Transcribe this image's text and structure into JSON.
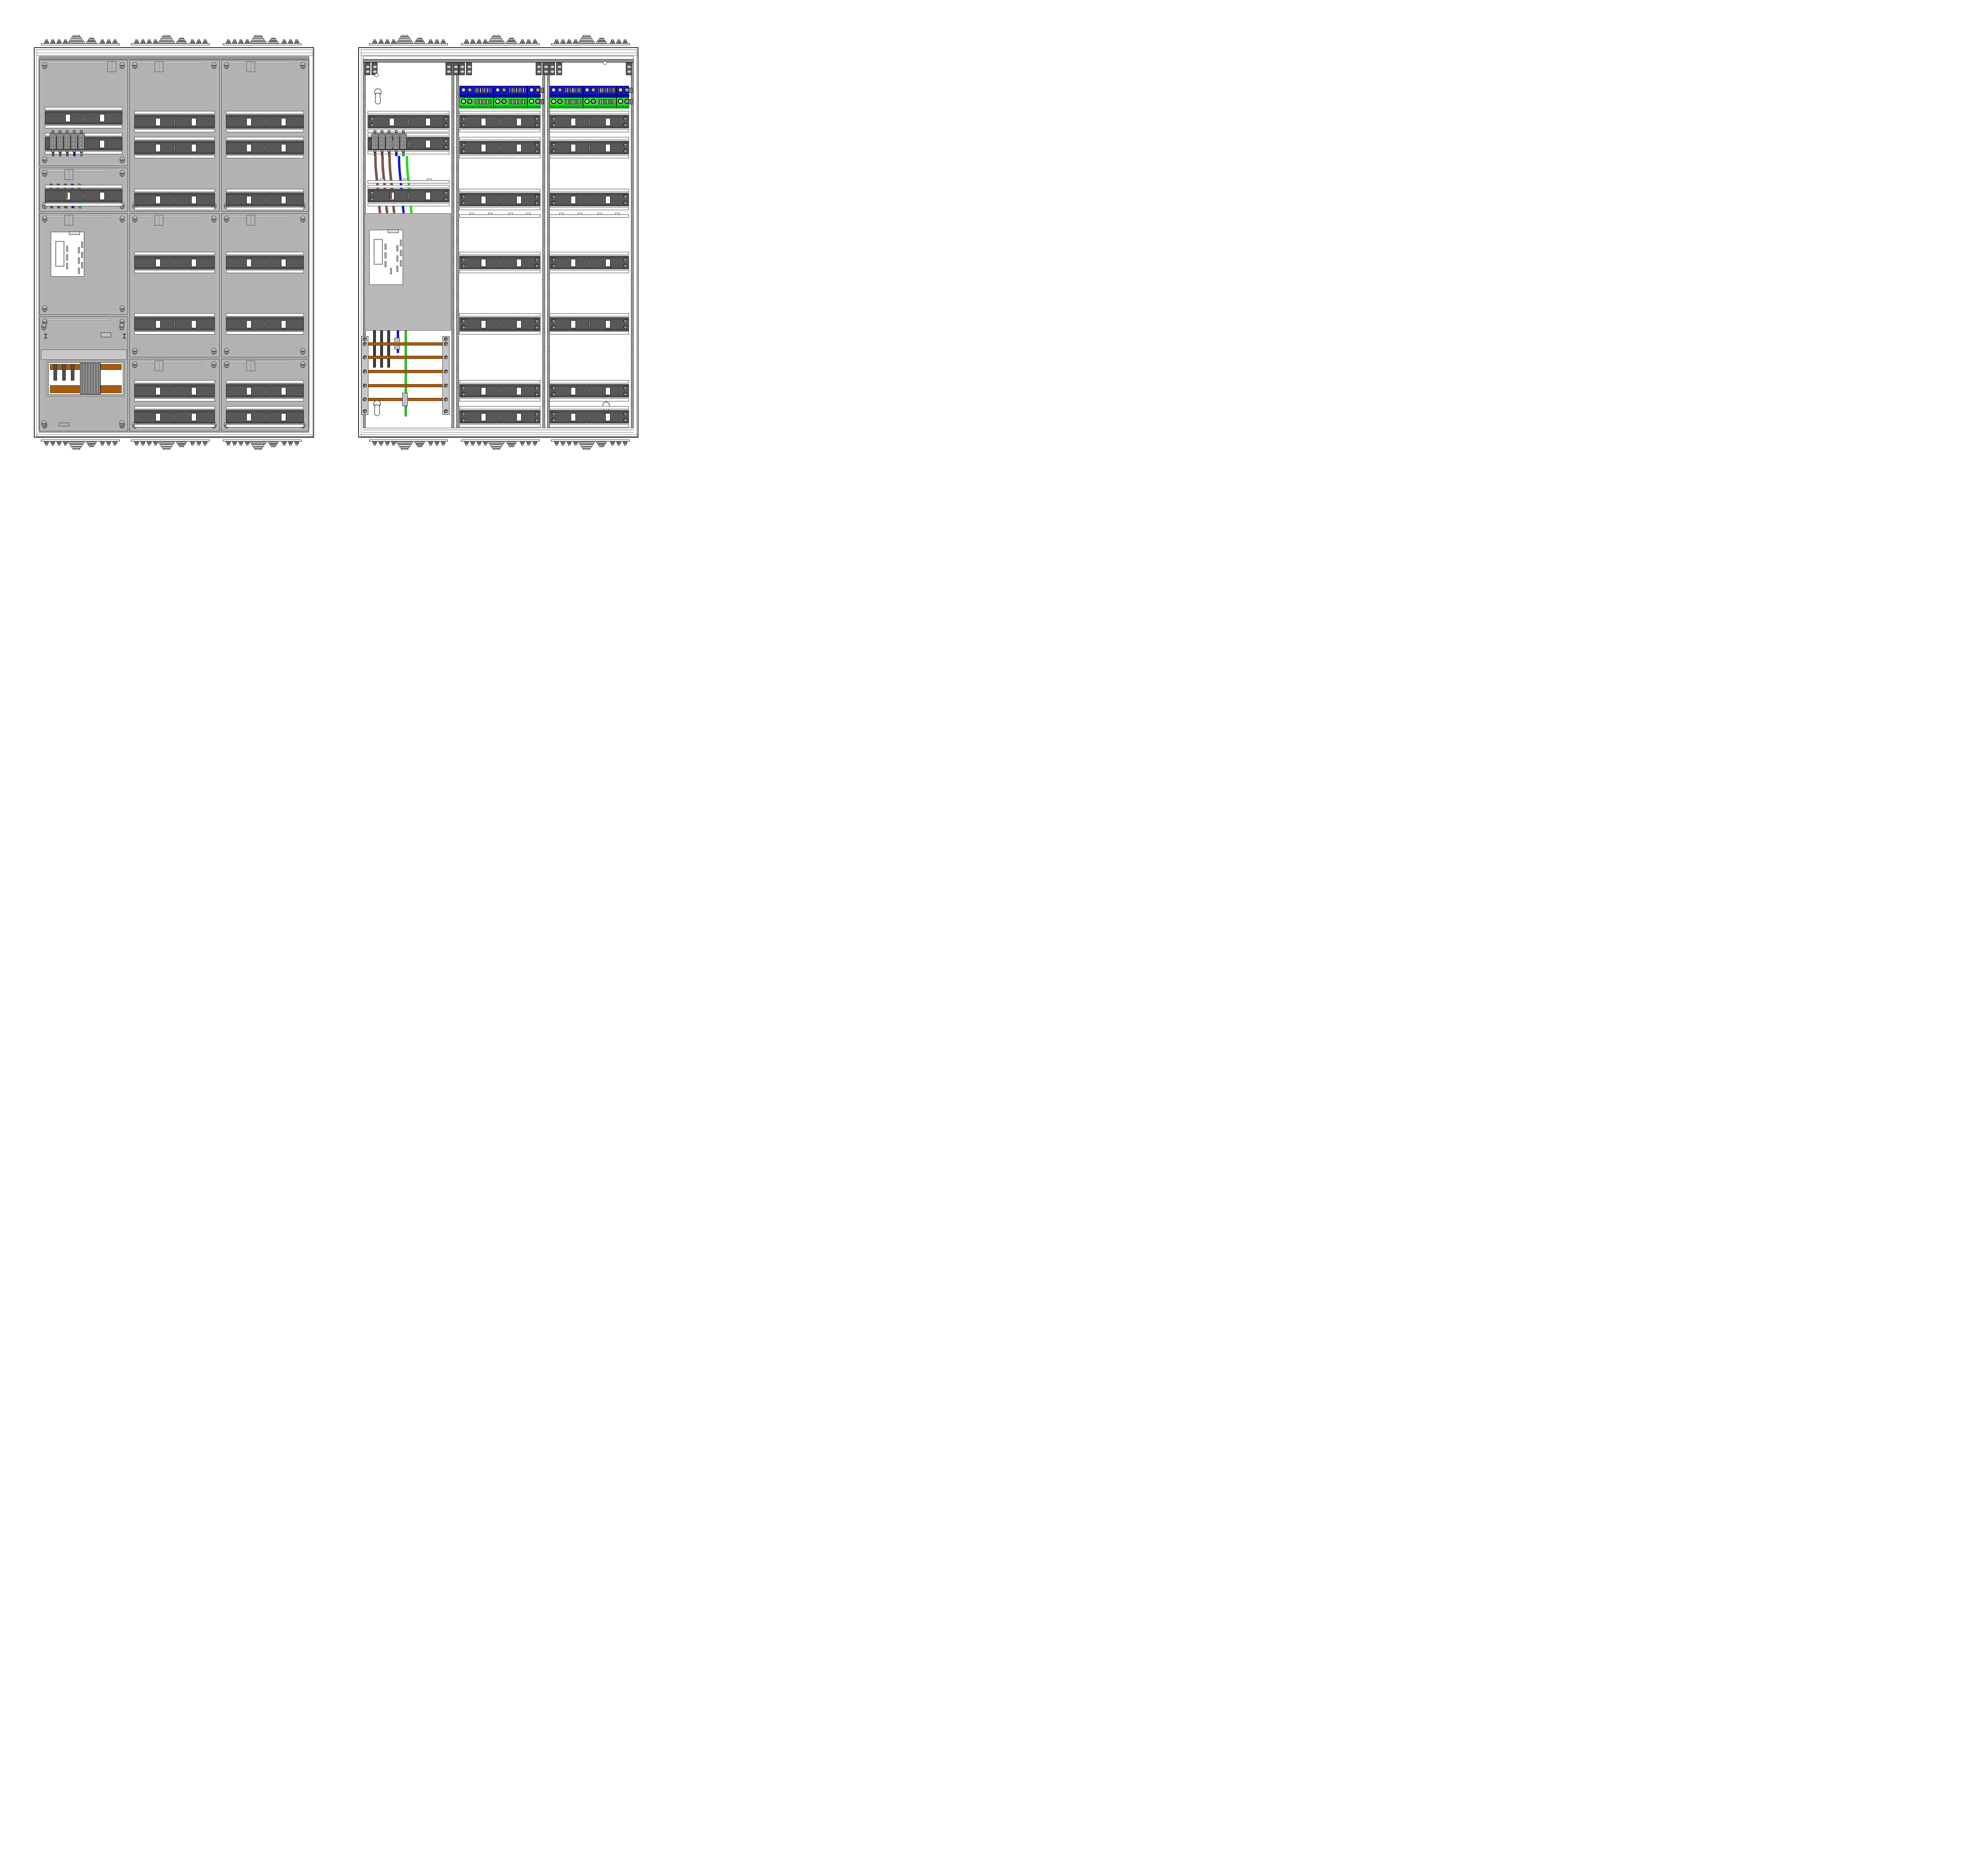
{
  "drawing": {
    "type": "electrical-distribution-cabinet",
    "view_count": 2,
    "left_view": "closed front with cover panels",
    "right_view": "open front with internal equipment"
  },
  "palette": {
    "interior_gray": "#b9b9b9",
    "panel_gray": "#b5b5b5",
    "panel_edge": "#3f3f3f",
    "row_dark": "#585858",
    "row_edge": "#232323",
    "white": "#ffffff",
    "screw_light": "#c6c6c6",
    "screw_dark": "#3e3e3e",
    "wire_brown": "#7d554b",
    "wire_blue": "#1414dd",
    "wire_green": "#1fdd1f",
    "cable_black": "#3d3d3d",
    "busbar_copper": "#a65c10",
    "busbar_edge": "#5c3305",
    "strip_blue": "#1515dd",
    "strip_blue_band": "#0d0da8",
    "strip_green": "#28dd28",
    "strip_green_band": "#15b415",
    "support_gray": "#c6c6c6",
    "rail_gray": "#8f8f8f"
  },
  "left_cabinet": {
    "columns": 3,
    "module_rows_col1": 3,
    "module_rows_col2": 7,
    "module_rows_col3": 7,
    "terminal_blocks": 5,
    "wire_stub_colors": [
      "brown",
      "brown",
      "brown",
      "blue",
      "green"
    ],
    "busbar_window": {
      "droppers": 3,
      "touch_guard_slats": 13
    },
    "label_pockets": 1
  },
  "right_cabinet": {
    "columns": 3,
    "neutral_rail": {
      "color": "blue",
      "segments": [
        {
          "label": "N1 2 3 4 5 6 7 8 9 10 11 12 13"
        },
        {
          "label": "N1 2 3 4 5 6 7 8 9 10 11 12 13"
        },
        {
          "label": "27 28 29 30 31 32 33"
        }
      ]
    },
    "pe_rail": {
      "color": "green",
      "segments": [
        {
          "label": "N1 2 3 4 5 6 7 8 9 10 11 12 13"
        },
        {
          "label": "N1 2 3 4 5 6 7 8 9 10 11 12 13"
        },
        {
          "label": "27 28 29 30 31 32 33"
        }
      ]
    },
    "terminal_blocks": 5,
    "wires": {
      "phase_count": 3,
      "phase_color": "brown",
      "neutral_color": "blue",
      "pe_color": "green",
      "lower_phase_color": "black"
    },
    "busbars": {
      "count": 5,
      "color": "copper"
    },
    "mounting": {
      "keyholes": 3,
      "circle_holes": 2
    },
    "label_pockets": 1
  }
}
